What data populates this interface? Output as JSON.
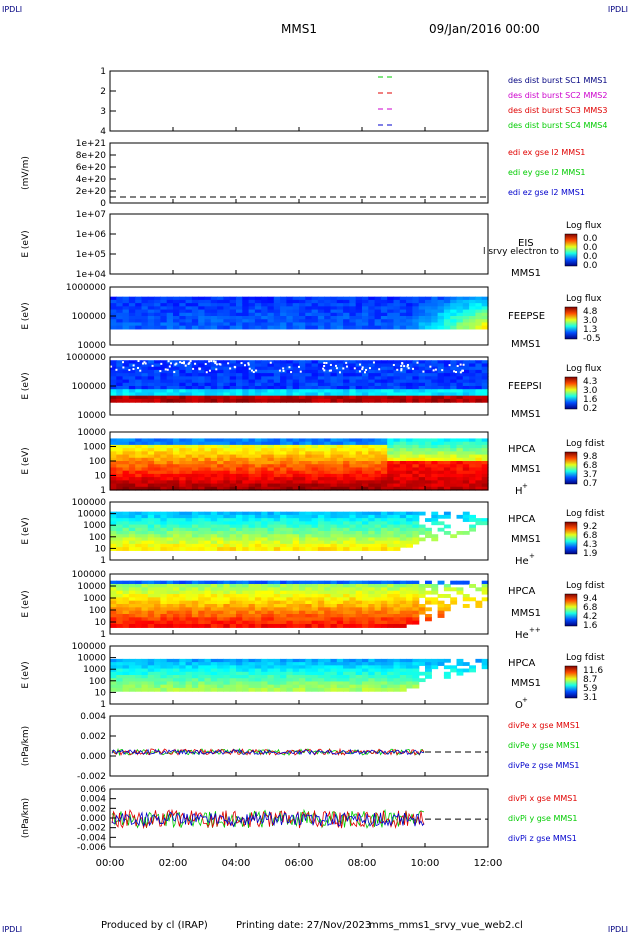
{
  "header": {
    "corner_label": "IPDLI",
    "title": "MMS1",
    "date": "09/Jan/2016 00:00"
  },
  "footer": {
    "produced_by": "Produced by cl (IRAP)",
    "printing_date": "Printing date: 27/Nov/2023",
    "script_name": "mms_mms1_srvy_vue_web2.cl",
    "corner_label": "IPDLI"
  },
  "colors": {
    "red": "#e00000",
    "green": "#00cc00",
    "blue": "#0000cc",
    "magenta": "#cc00cc",
    "navy": "#000080"
  },
  "chart_data": [
    {
      "type": "line",
      "ylabel": "",
      "yticks": [
        "1",
        "2",
        "3",
        "4"
      ],
      "legend": [
        {
          "text": "des dist burst SC1 MMS1",
          "color": "#000080"
        },
        {
          "text": "des dist burst SC2 MMS2",
          "color": "#cc00cc"
        },
        {
          "text": "des dist burst SC3 MMS3",
          "color": "#e00000"
        },
        {
          "text": "des dist burst SC4 MMS4",
          "color": "#00cc00"
        }
      ],
      "markers": [
        {
          "spacecraft": 4,
          "color": "#00cc00"
        },
        {
          "spacecraft": 3,
          "color": "#e00000"
        },
        {
          "spacecraft": 2,
          "color": "#cc00cc"
        },
        {
          "spacecraft": 1,
          "color": "#0000cc"
        }
      ]
    },
    {
      "type": "line",
      "ylabel": "(mV/m)",
      "yticks": [
        "1e+21",
        "8e+20",
        "6e+20",
        "4e+20",
        "2e+20",
        "0"
      ],
      "legend": [
        {
          "text": "edi ex gse l2 MMS1",
          "color": "#e00000"
        },
        {
          "text": "edi ey gse l2 MMS1",
          "color": "#00cc00"
        },
        {
          "text": "edi ez gse l2 MMS1",
          "color": "#0000cc"
        }
      ]
    },
    {
      "type": "heatmap",
      "ylabel": "E (eV)",
      "yticks": [
        "1e+07",
        "1e+06",
        "1e+05",
        "1e+04"
      ],
      "instrument": "EIS",
      "mission": "MMS1",
      "overlay_text": "l srvy electron to",
      "colorbar": {
        "title": "Log flux",
        "ticks": [
          "0.0",
          "0.0",
          "0.0",
          "0.0"
        ]
      }
    },
    {
      "type": "heatmap",
      "ylabel": "E (eV)",
      "yticks": [
        "1000000",
        "100000",
        "10000"
      ],
      "instrument": "FEEPSE",
      "mission": "MMS1",
      "colorbar": {
        "title": "Log flux",
        "ticks": [
          "4.8",
          "3.0",
          "1.3",
          "-0.5"
        ]
      }
    },
    {
      "type": "heatmap",
      "ylabel": "E (eV)",
      "yticks": [
        "1000000",
        "100000",
        "10000"
      ],
      "instrument": "FEEPSI",
      "mission": "MMS1",
      "colorbar": {
        "title": "Log flux",
        "ticks": [
          "4.3",
          "3.0",
          "1.6",
          "0.2"
        ]
      }
    },
    {
      "type": "heatmap",
      "ylabel": "E (eV)",
      "yticks": [
        "10000",
        "1000",
        "100",
        "10",
        "1"
      ],
      "instrument": "HPCA",
      "mission": "MMS1",
      "species": "H",
      "charge": "+",
      "colorbar": {
        "title": "Log fdist",
        "ticks": [
          "9.8",
          "6.8",
          "3.7",
          "0.7"
        ]
      }
    },
    {
      "type": "heatmap",
      "ylabel": "E (eV)",
      "yticks": [
        "100000",
        "10000",
        "1000",
        "100",
        "10",
        "1"
      ],
      "instrument": "HPCA",
      "mission": "MMS1",
      "species": "He",
      "charge": "+",
      "colorbar": {
        "title": "Log fdist",
        "ticks": [
          "9.2",
          "6.8",
          "4.3",
          "1.9"
        ]
      }
    },
    {
      "type": "heatmap",
      "ylabel": "E (eV)",
      "yticks": [
        "100000",
        "10000",
        "1000",
        "100",
        "10",
        "1"
      ],
      "instrument": "HPCA",
      "mission": "MMS1",
      "species": "He",
      "charge": "++",
      "colorbar": {
        "title": "Log fdist",
        "ticks": [
          "9.4",
          "6.8",
          "4.2",
          "1.6"
        ]
      }
    },
    {
      "type": "heatmap",
      "ylabel": "E (eV)",
      "yticks": [
        "100000",
        "10000",
        "1000",
        "100",
        "10",
        "1"
      ],
      "instrument": "HPCA",
      "mission": "MMS1",
      "species": "O",
      "charge": "+",
      "colorbar": {
        "title": "Log fdist",
        "ticks": [
          "11.6",
          "8.7",
          "5.9",
          "3.1"
        ]
      }
    },
    {
      "type": "line",
      "ylabel": "(nPa/km)",
      "yticks": [
        "0.004",
        "0.002",
        "0.000",
        "-0.002"
      ],
      "legend": [
        {
          "text": "divPe x gse MMS1",
          "color": "#e00000"
        },
        {
          "text": "divPe y gse MMS1",
          "color": "#00cc00"
        },
        {
          "text": "divPe z gse MMS1",
          "color": "#0000cc"
        }
      ]
    },
    {
      "type": "line",
      "ylabel": "(nPa/km)",
      "yticks": [
        "0.006",
        "0.004",
        "0.002",
        "0.000",
        "-0.002",
        "-0.004",
        "-0.006"
      ],
      "legend": [
        {
          "text": "divPi x gse MMS1",
          "color": "#e00000"
        },
        {
          "text": "divPi y gse MMS1",
          "color": "#00cc00"
        },
        {
          "text": "divPi z gse MMS1",
          "color": "#0000cc"
        }
      ]
    }
  ],
  "time_axis": {
    "ticks": [
      "00:00",
      "02:00",
      "04:00",
      "06:00",
      "08:00",
      "10:00",
      "12:00"
    ],
    "range_hours": [
      0,
      12
    ]
  }
}
